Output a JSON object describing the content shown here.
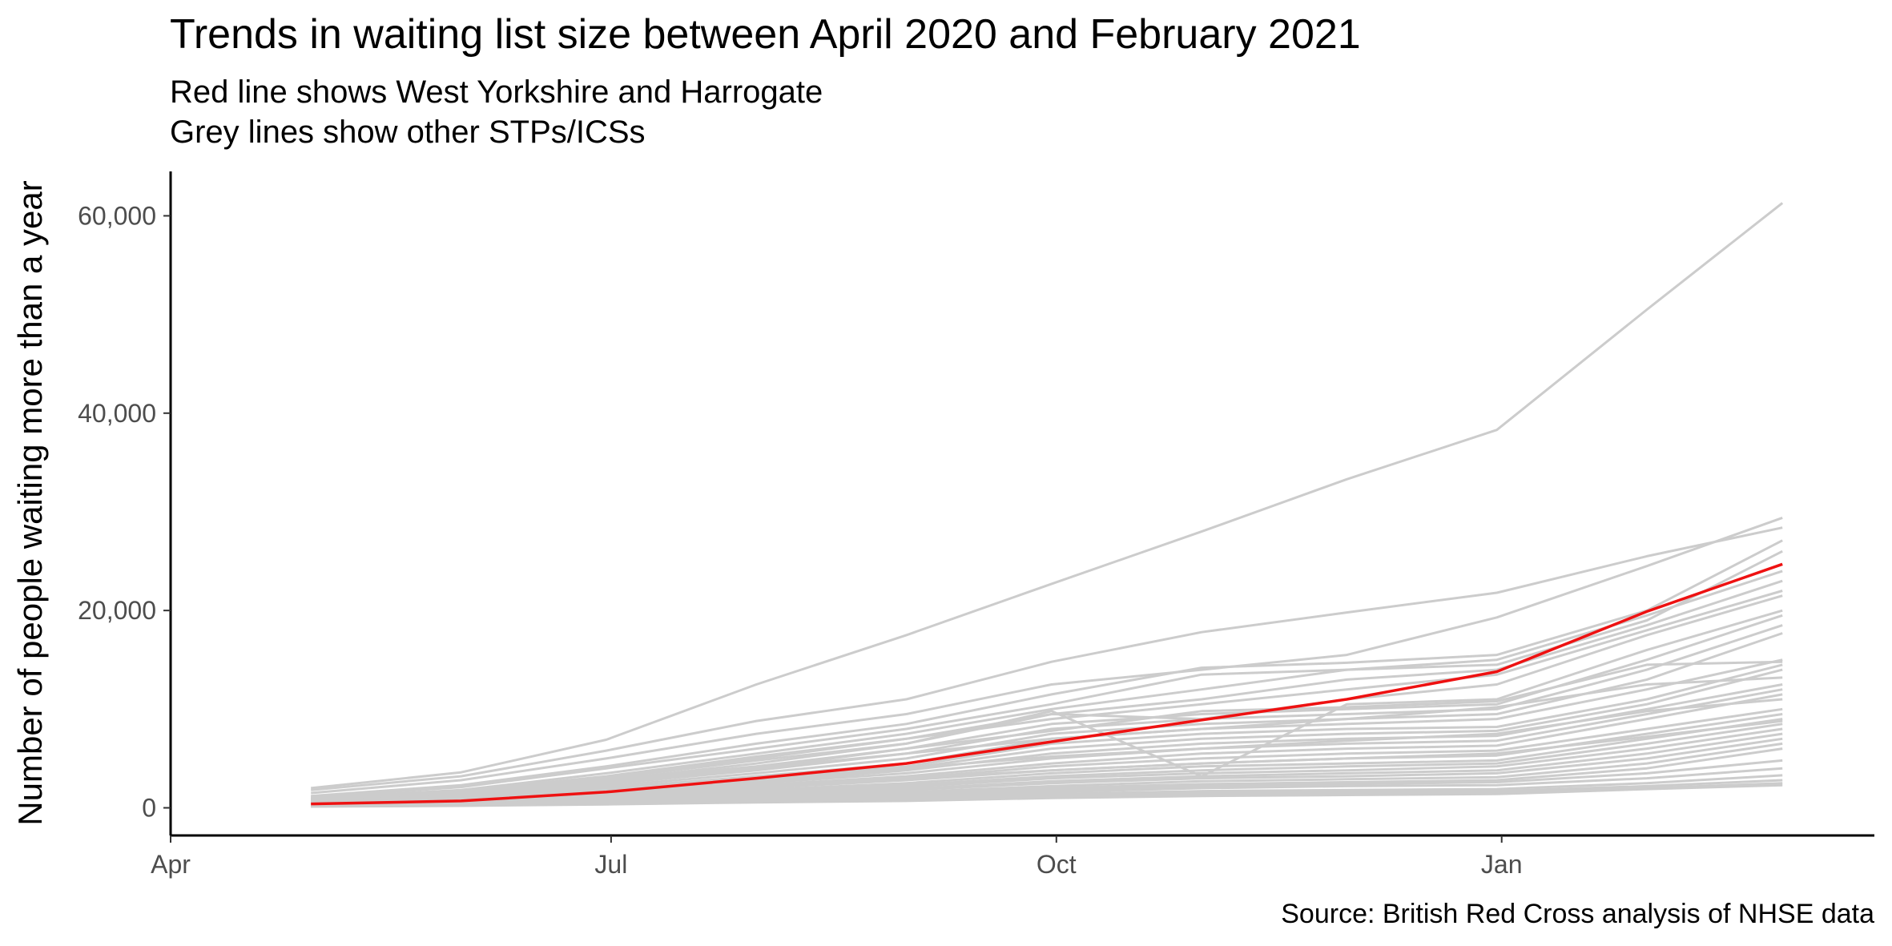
{
  "chart_data": {
    "type": "line",
    "title": "Trends in waiting list size between April 2020 and February 2021",
    "subtitle_lines": [
      "Red line shows West Yorkshire and Harrogate",
      "Grey lines show other STPs/ICSs"
    ],
    "xlabel": "",
    "ylabel": "Number of people waiting more than a year",
    "caption": "Source: British Red Cross analysis of NHSE data",
    "x": [
      "2020-04-30",
      "2020-05-31",
      "2020-06-30",
      "2020-07-31",
      "2020-08-31",
      "2020-09-30",
      "2020-10-31",
      "2020-11-30",
      "2020-12-31",
      "2021-01-31",
      "2021-02-28"
    ],
    "x_ticks": [
      {
        "date": "2020-04-01",
        "label": "Apr"
      },
      {
        "date": "2020-07-01",
        "label": "Jul"
      },
      {
        "date": "2020-10-01",
        "label": "Oct"
      },
      {
        "date": "2021-01-01",
        "label": "Jan"
      }
    ],
    "xlim": [
      "2020-04-01",
      "2021-03-19"
    ],
    "ylim": [
      -2800,
      64500
    ],
    "y_ticks": [
      {
        "value": 0,
        "label": "0"
      },
      {
        "value": 20000,
        "label": "20,000"
      },
      {
        "value": 40000,
        "label": "40,000"
      },
      {
        "value": 60000,
        "label": "60,000"
      }
    ],
    "grid": false,
    "colors": {
      "highlight": "#ee1111",
      "other": "#cccccc",
      "axis": "#000000"
    },
    "highlight_series": {
      "name": "West Yorkshire and Harrogate",
      "values": [
        400,
        700,
        1600,
        3000,
        4500,
        6700,
        8900,
        11000,
        13800,
        19900,
        24700
      ]
    },
    "other_series": [
      {
        "values": [
          2000,
          3600,
          6900,
          12500,
          17500,
          22700,
          28000,
          33300,
          38300,
          50500,
          61300
        ]
      },
      {
        "values": [
          1800,
          3200,
          5800,
          8800,
          11000,
          14800,
          17800,
          19800,
          21800,
          25500,
          28400
        ]
      },
      {
        "values": [
          1500,
          2800,
          5000,
          7500,
          9500,
          12500,
          14000,
          15500,
          19300,
          24500,
          29400
        ]
      },
      {
        "values": [
          1200,
          2300,
          4200,
          6500,
          8500,
          11500,
          14200,
          14700,
          15500,
          20000,
          27100
        ]
      },
      {
        "values": [
          1100,
          2100,
          4000,
          6000,
          8000,
          10500,
          13500,
          14000,
          14500,
          19000,
          26000
        ]
      },
      {
        "values": [
          1000,
          1800,
          3500,
          5500,
          7500,
          10000,
          12000,
          14000,
          15000,
          19500,
          24000
        ]
      },
      {
        "values": [
          900,
          1700,
          3200,
          5200,
          7000,
          9500,
          11000,
          13000,
          14000,
          18500,
          23000
        ]
      },
      {
        "values": [
          850,
          1600,
          3000,
          5000,
          7000,
          9000,
          10500,
          12000,
          13500,
          18000,
          22000
        ]
      },
      {
        "values": [
          800,
          1500,
          3000,
          4800,
          6500,
          9500,
          9000,
          11000,
          12500,
          17500,
          21500
        ]
      },
      {
        "values": [
          800,
          1400,
          2800,
          4500,
          6500,
          9800,
          3200,
          10500,
          11000,
          16000,
          20000
        ]
      },
      {
        "values": [
          700,
          1300,
          2600,
          4000,
          6000,
          8500,
          9500,
          10000,
          10500,
          15000,
          19500
        ]
      },
      {
        "values": [
          700,
          1200,
          2400,
          3800,
          5500,
          8000,
          9000,
          9500,
          10000,
          14000,
          18500
        ]
      },
      {
        "values": [
          650,
          1100,
          2200,
          3500,
          5000,
          7500,
          8500,
          9000,
          9500,
          13000,
          17700
        ]
      },
      {
        "values": [
          600,
          1000,
          2000,
          3200,
          4500,
          7000,
          8000,
          8500,
          9000,
          12000,
          15000
        ]
      },
      {
        "values": [
          550,
          950,
          1900,
          3000,
          4200,
          6500,
          7500,
          8000,
          8200,
          11000,
          14500
        ]
      },
      {
        "values": [
          500,
          900,
          1800,
          2800,
          4000,
          6000,
          7000,
          7500,
          7800,
          10500,
          14000
        ]
      },
      {
        "values": [
          480,
          850,
          1700,
          2600,
          3800,
          5500,
          6500,
          7000,
          7300,
          10000,
          12500
        ]
      },
      {
        "values": [
          450,
          800,
          1600,
          2500,
          3500,
          5000,
          6000,
          6500,
          6800,
          9500,
          12000
        ]
      },
      {
        "values": [
          420,
          750,
          1500,
          2300,
          3200,
          4500,
          5500,
          6000,
          6300,
          9000,
          11500
        ]
      },
      {
        "values": [
          400,
          700,
          1400,
          2100,
          3000,
          4200,
          5000,
          5500,
          5800,
          8000,
          10000
        ]
      },
      {
        "values": [
          380,
          650,
          1300,
          2000,
          2800,
          3800,
          4500,
          5000,
          5300,
          7500,
          9500
        ]
      },
      {
        "values": [
          350,
          600,
          1200,
          1800,
          2500,
          3500,
          4200,
          4500,
          4800,
          7000,
          9000
        ]
      },
      {
        "values": [
          330,
          550,
          1100,
          1700,
          2300,
          3200,
          3800,
          4200,
          4500,
          6500,
          8500
        ]
      },
      {
        "values": [
          300,
          500,
          1000,
          1500,
          2100,
          3000,
          3500,
          3800,
          4200,
          6000,
          8000
        ]
      },
      {
        "values": [
          280,
          480,
          950,
          1400,
          1900,
          2700,
          3200,
          3500,
          3800,
          5500,
          7500
        ]
      },
      {
        "values": [
          260,
          450,
          900,
          1300,
          1800,
          2500,
          3000,
          3200,
          3500,
          5000,
          7000
        ]
      },
      {
        "values": [
          240,
          400,
          800,
          1200,
          1600,
          2200,
          2700,
          2900,
          3100,
          4500,
          6500
        ]
      },
      {
        "values": [
          220,
          380,
          700,
          1100,
          1500,
          2000,
          2400,
          2600,
          2800,
          4000,
          6000
        ]
      },
      {
        "values": [
          200,
          350,
          650,
          1000,
          1300,
          1800,
          2200,
          2400,
          2600,
          3500,
          4800
        ]
      },
      {
        "values": [
          180,
          320,
          600,
          900,
          1200,
          1600,
          2000,
          2200,
          2300,
          3000,
          4000
        ]
      },
      {
        "values": [
          160,
          280,
          500,
          800,
          1000,
          1400,
          1700,
          1800,
          1900,
          2500,
          3300
        ]
      },
      {
        "values": [
          150,
          250,
          450,
          700,
          900,
          1200,
          1500,
          1600,
          1700,
          2200,
          2800
        ]
      },
      {
        "values": [
          140,
          230,
          400,
          600,
          800,
          1100,
          1300,
          1400,
          1500,
          2000,
          2500
        ]
      },
      {
        "values": [
          130,
          200,
          350,
          550,
          700,
          1000,
          1200,
          1300,
          1400,
          1900,
          2300
        ]
      },
      {
        "values": [
          1000,
          1600,
          2800,
          4200,
          6000,
          7800,
          9800,
          10200,
          10800,
          14500,
          14800
        ]
      },
      {
        "values": [
          900,
          1500,
          2600,
          4000,
          5500,
          7000,
          8000,
          9000,
          10200,
          12500,
          13200
        ]
      },
      {
        "values": [
          700,
          1100,
          2000,
          3000,
          4000,
          5200,
          6000,
          6800,
          7500,
          9800,
          11000
        ]
      },
      {
        "values": [
          500,
          800,
          1500,
          2200,
          3000,
          3800,
          4500,
          5000,
          5500,
          7200,
          8800
        ]
      }
    ]
  }
}
